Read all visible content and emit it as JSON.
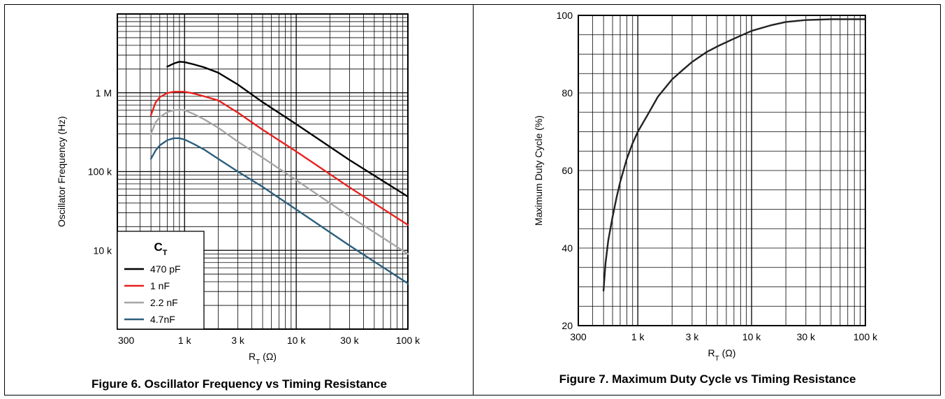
{
  "figures": [
    {
      "caption": "Figure 6. Oscillator Frequency vs Timing Resistance"
    },
    {
      "caption": "Figure 7. Maximum Duty Cycle vs Timing Resistance"
    }
  ],
  "chart_data": [
    {
      "type": "line",
      "title": "",
      "xlabel": "R_T (Ω)",
      "ylabel": "Oscillator Frequency (Hz)",
      "xscale": "log",
      "yscale": "log",
      "xlim": [
        250,
        100000
      ],
      "ylim": [
        1000,
        10000000
      ],
      "x_ticks": [
        {
          "v": 300,
          "l": "300"
        },
        {
          "v": 1000,
          "l": "1 k"
        },
        {
          "v": 3000,
          "l": "3 k"
        },
        {
          "v": 10000,
          "l": "10 k"
        },
        {
          "v": 30000,
          "l": "30 k"
        },
        {
          "v": 100000,
          "l": "100 k"
        }
      ],
      "y_ticks": [
        {
          "v": 10000,
          "l": "10 k"
        },
        {
          "v": 100000,
          "l": "100 k"
        },
        {
          "v": 1000000,
          "l": "1 M"
        }
      ],
      "grid": true,
      "legend": {
        "title": "C",
        "title_sub": "T",
        "position": "bottom-left"
      },
      "series": [
        {
          "name": "470 pF",
          "color": "#000000",
          "x": [
            700,
            800,
            900,
            1000,
            1200,
            1500,
            2000,
            3000,
            5000,
            10000,
            30000,
            100000
          ],
          "y": [
            2150000,
            2350000,
            2480000,
            2450000,
            2300000,
            2100000,
            1800000,
            1270000,
            760000,
            400000,
            140000,
            48000
          ]
        },
        {
          "name": "1 nF",
          "color": "#e8211e",
          "x": [
            500,
            550,
            600,
            700,
            800,
            1000,
            1200,
            1500,
            2000,
            3000,
            5000,
            10000,
            30000,
            100000
          ],
          "y": [
            520000,
            750000,
            880000,
            990000,
            1030000,
            1030000,
            980000,
            900000,
            800000,
            560000,
            340000,
            180000,
            63000,
            21000
          ]
        },
        {
          "name": "2.2 nF",
          "color": "#a6a6a6",
          "x": [
            500,
            550,
            600,
            700,
            800,
            900,
            1000,
            1200,
            1500,
            2000,
            3000,
            5000,
            10000,
            30000,
            100000
          ],
          "y": [
            300000,
            420000,
            490000,
            570000,
            600000,
            610000,
            600000,
            540000,
            460000,
            360000,
            240000,
            150000,
            78000,
            27000,
            9000
          ]
        },
        {
          "name": "4.7nF",
          "color": "#2b5f7e",
          "x": [
            500,
            550,
            600,
            700,
            800,
            900,
            1000,
            1200,
            1500,
            2000,
            3000,
            5000,
            10000,
            30000,
            100000
          ],
          "y": [
            145000,
            185000,
            215000,
            250000,
            265000,
            265000,
            255000,
            225000,
            190000,
            145000,
            100000,
            64000,
            33000,
            11500,
            3800
          ]
        }
      ]
    },
    {
      "type": "line",
      "title": "",
      "xlabel": "R_T (Ω)",
      "ylabel": "Maximum Duty Cycle (%)",
      "xscale": "log",
      "yscale": "linear",
      "xlim": [
        300,
        100000
      ],
      "ylim": [
        20,
        100
      ],
      "x_ticks": [
        {
          "v": 300,
          "l": "300"
        },
        {
          "v": 1000,
          "l": "1 k"
        },
        {
          "v": 3000,
          "l": "3 k"
        },
        {
          "v": 10000,
          "l": "10 k"
        },
        {
          "v": 30000,
          "l": "30 k"
        },
        {
          "v": 100000,
          "l": "100 k"
        }
      ],
      "y_ticks": [
        {
          "v": 20,
          "l": "20"
        },
        {
          "v": 40,
          "l": "40"
        },
        {
          "v": 60,
          "l": "60"
        },
        {
          "v": 80,
          "l": "80"
        },
        {
          "v": 100,
          "l": "100"
        }
      ],
      "grid": true,
      "series": [
        {
          "color": "#222222",
          "x": [
            500,
            520,
            550,
            600,
            650,
            700,
            800,
            900,
            1000,
            1200,
            1500,
            2000,
            2500,
            3000,
            4000,
            5000,
            7000,
            10000,
            15000,
            20000,
            30000,
            50000,
            100000
          ],
          "y": [
            29,
            36,
            42,
            48,
            53,
            57,
            63,
            67,
            70,
            74,
            79,
            83.5,
            86,
            88,
            90.5,
            92,
            94,
            96,
            97.5,
            98.3,
            98.8,
            99,
            99
          ]
        }
      ]
    }
  ]
}
